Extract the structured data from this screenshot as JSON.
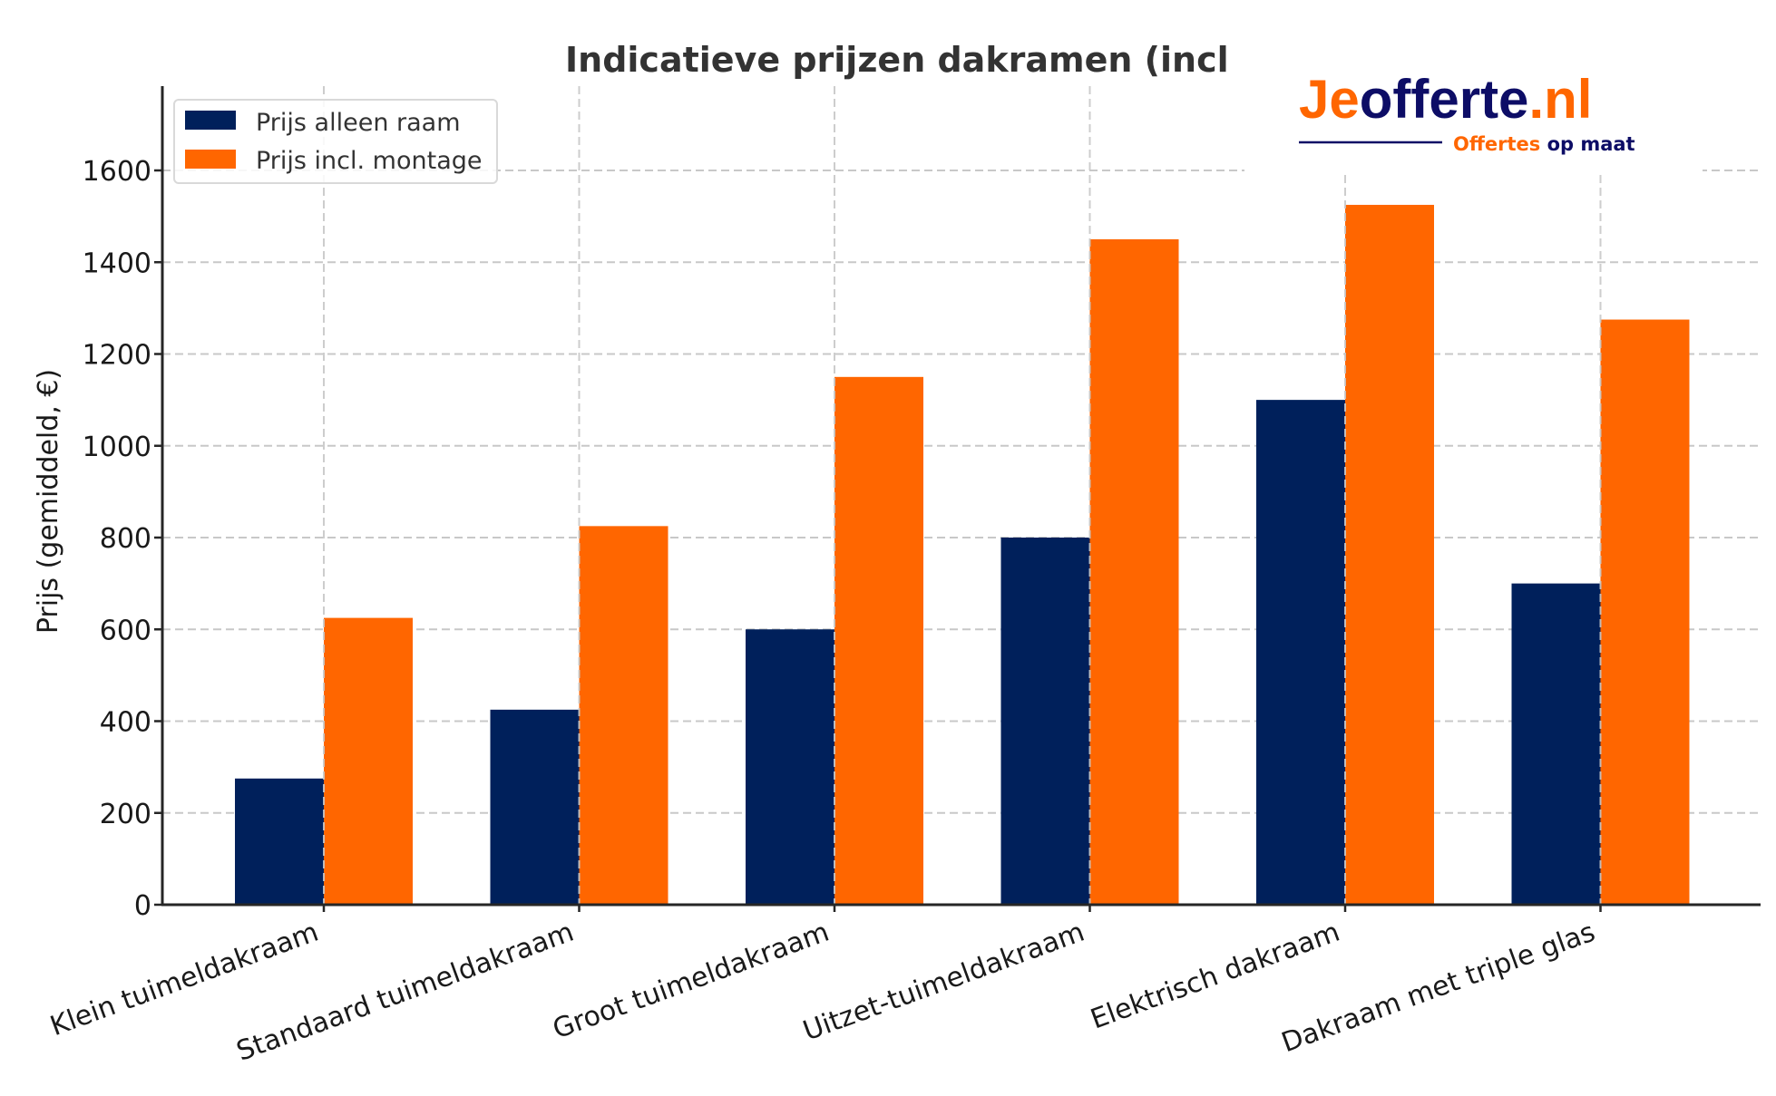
{
  "chart_data": {
    "type": "bar",
    "title": "Indicatieve prijzen dakramen (incl",
    "xlabel": "",
    "ylabel": "Prijs (gemiddeld, €)",
    "ylim": [
      0,
      1780
    ],
    "yticks": [
      0,
      200,
      400,
      600,
      800,
      1000,
      1200,
      1400,
      1600
    ],
    "ytick_labels": [
      "0",
      "200",
      "400",
      "600",
      "800",
      "1000",
      "1200",
      "1400",
      "1600"
    ],
    "grid": true,
    "legend_position": "top-left",
    "categories": [
      "Klein tuimeldakraam",
      "Standaard tuimeldakraam",
      "Groot tuimeldakraam",
      "Uitzet-tuimeldakraam",
      "Elektrisch dakraam",
      "Dakraam met triple glas"
    ],
    "series": [
      {
        "name": "Prijs alleen raam",
        "color": "#00205b",
        "values": [
          275,
          425,
          600,
          800,
          1100,
          700
        ]
      },
      {
        "name": "Prijs incl. montage",
        "color": "#ff6600",
        "values": [
          625,
          825,
          1150,
          1450,
          1525,
          1275
        ]
      }
    ]
  },
  "logo": {
    "part1": "Je",
    "part2": "offerte",
    "part3": ".nl",
    "tagline1": "Offertes",
    "tagline2": "op maat",
    "orange": "#ff6600",
    "navy": "#0d0d66"
  }
}
